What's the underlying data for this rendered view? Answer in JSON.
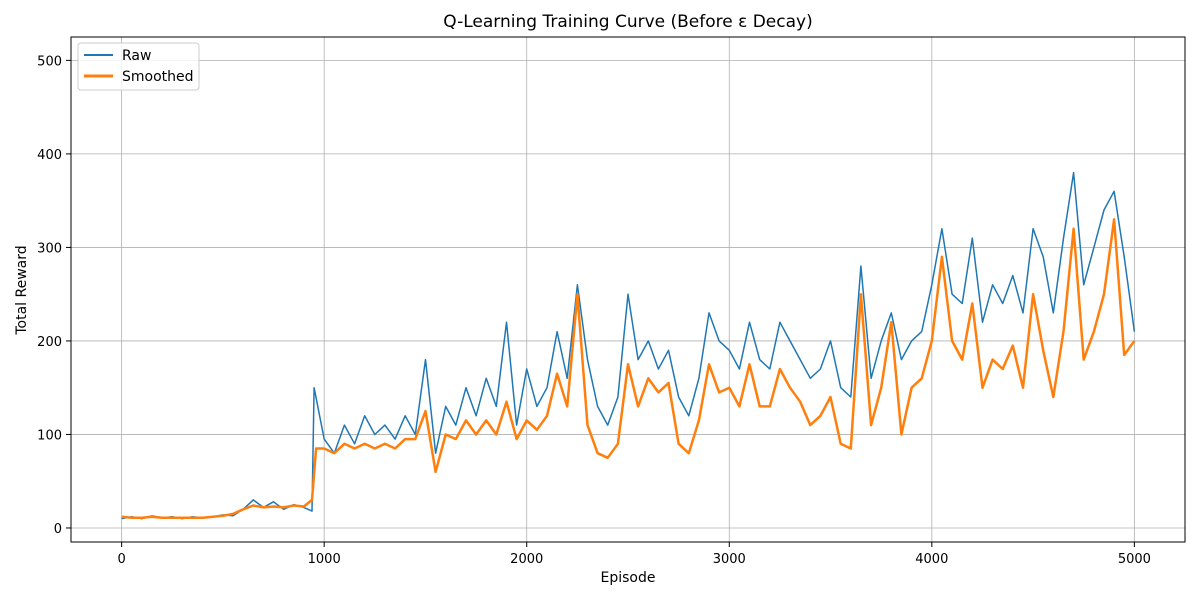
{
  "chart_data": {
    "type": "line",
    "title": "Q-Learning Training Curve (Before ε Decay)",
    "xlabel": "Episode",
    "ylabel": "Total Reward",
    "xlim": [
      -250,
      5250
    ],
    "ylim": [
      -15,
      525
    ],
    "xticks": [
      0,
      1000,
      2000,
      3000,
      4000,
      5000
    ],
    "yticks": [
      0,
      100,
      200,
      300,
      400,
      500
    ],
    "xtick_labels": [
      "0",
      "1000",
      "2000",
      "3000",
      "4000",
      "5000"
    ],
    "ytick_labels": [
      "0",
      "100",
      "200",
      "300",
      "400",
      "500"
    ],
    "grid": true,
    "legend_position": "top-left",
    "colors": {
      "raw": "#1f77b4",
      "smoothed": "#ff7f0e",
      "grid": "#b0b0b0",
      "axes": "#000000"
    },
    "series": [
      {
        "name": "Raw",
        "x": [
          0,
          50,
          100,
          150,
          200,
          250,
          300,
          350,
          400,
          450,
          500,
          550,
          600,
          650,
          700,
          750,
          800,
          850,
          900,
          940,
          950,
          1000,
          1050,
          1100,
          1150,
          1200,
          1250,
          1300,
          1350,
          1400,
          1450,
          1500,
          1550,
          1600,
          1650,
          1700,
          1750,
          1800,
          1850,
          1900,
          1950,
          2000,
          2050,
          2100,
          2150,
          2200,
          2250,
          2300,
          2350,
          2400,
          2450,
          2500,
          2550,
          2600,
          2650,
          2700,
          2750,
          2800,
          2850,
          2900,
          2950,
          3000,
          3050,
          3100,
          3150,
          3200,
          3250,
          3300,
          3350,
          3400,
          3450,
          3500,
          3550,
          3600,
          3650,
          3700,
          3750,
          3800,
          3850,
          3900,
          3950,
          4000,
          4050,
          4100,
          4150,
          4200,
          4250,
          4300,
          4350,
          4400,
          4450,
          4500,
          4550,
          4600,
          4650,
          4700,
          4750,
          4800,
          4850,
          4900,
          4950,
          5000
        ],
        "values": [
          10,
          12,
          10,
          13,
          11,
          12,
          10,
          12,
          11,
          12,
          14,
          13,
          20,
          30,
          22,
          28,
          20,
          25,
          22,
          18,
          150,
          95,
          80,
          110,
          90,
          120,
          100,
          110,
          95,
          120,
          100,
          180,
          80,
          130,
          110,
          150,
          120,
          160,
          130,
          220,
          110,
          170,
          130,
          150,
          210,
          160,
          260,
          180,
          130,
          110,
          140,
          250,
          180,
          200,
          170,
          190,
          140,
          120,
          160,
          230,
          200,
          190,
          170,
          220,
          180,
          170,
          220,
          200,
          180,
          160,
          170,
          200,
          150,
          140,
          280,
          160,
          200,
          230,
          180,
          200,
          210,
          260,
          320,
          250,
          240,
          310,
          220,
          260,
          240,
          270,
          230,
          320,
          290,
          230,
          310,
          380,
          260,
          300,
          340,
          360,
          290,
          210
        ]
      },
      {
        "name": "Smoothed",
        "x": [
          0,
          50,
          100,
          150,
          200,
          250,
          300,
          350,
          400,
          450,
          500,
          550,
          600,
          650,
          700,
          750,
          800,
          850,
          900,
          940,
          960,
          1000,
          1050,
          1100,
          1150,
          1200,
          1250,
          1300,
          1350,
          1400,
          1450,
          1500,
          1550,
          1600,
          1650,
          1700,
          1750,
          1800,
          1850,
          1900,
          1950,
          2000,
          2050,
          2100,
          2150,
          2200,
          2250,
          2300,
          2350,
          2400,
          2450,
          2500,
          2550,
          2600,
          2650,
          2700,
          2750,
          2800,
          2850,
          2900,
          2950,
          3000,
          3050,
          3100,
          3150,
          3200,
          3250,
          3300,
          3350,
          3400,
          3450,
          3500,
          3550,
          3600,
          3650,
          3700,
          3750,
          3800,
          3850,
          3900,
          3950,
          4000,
          4050,
          4100,
          4150,
          4200,
          4250,
          4300,
          4350,
          4400,
          4450,
          4500,
          4550,
          4600,
          4650,
          4700,
          4750,
          4800,
          4850,
          4900,
          4950,
          5000
        ],
        "values": [
          12,
          11,
          11,
          12,
          11,
          11,
          11,
          11,
          11,
          12,
          13,
          15,
          20,
          24,
          22,
          23,
          22,
          24,
          23,
          30,
          85,
          85,
          80,
          90,
          85,
          90,
          85,
          90,
          85,
          95,
          95,
          125,
          60,
          100,
          95,
          115,
          100,
          115,
          100,
          135,
          95,
          115,
          105,
          120,
          165,
          130,
          250,
          110,
          80,
          75,
          90,
          175,
          130,
          160,
          145,
          155,
          90,
          80,
          115,
          175,
          145,
          150,
          130,
          175,
          130,
          130,
          170,
          150,
          135,
          110,
          120,
          140,
          90,
          85,
          250,
          110,
          150,
          220,
          100,
          150,
          160,
          200,
          290,
          200,
          180,
          240,
          150,
          180,
          170,
          195,
          150,
          250,
          190,
          140,
          210,
          320,
          180,
          210,
          250,
          330,
          185,
          200
        ]
      }
    ]
  }
}
